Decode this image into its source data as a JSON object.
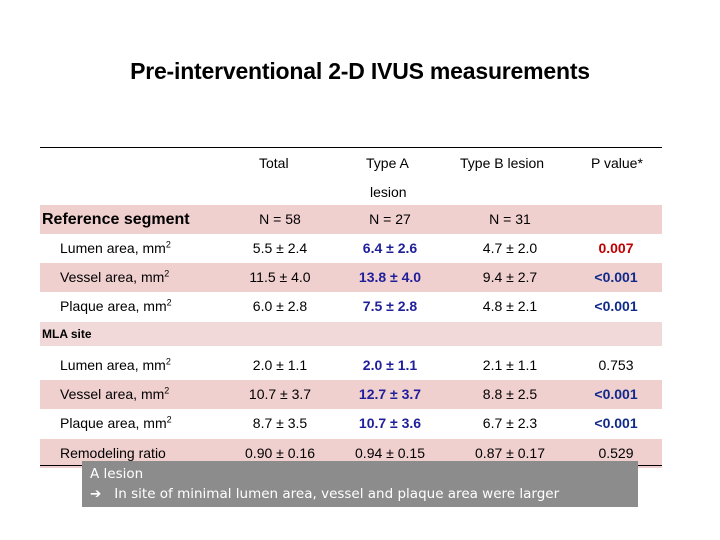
{
  "title": "Pre-interventional 2-D IVUS measurements",
  "headers": {
    "total": "Total",
    "type_a": "Type A",
    "type_a_line2": "lesion",
    "type_b": "Type B lesion",
    "p_value": "P value*"
  },
  "reference_segment": {
    "label": "Reference segment",
    "total": "N = 58",
    "type_a": "N = 27",
    "type_b": "N = 31"
  },
  "reference_rows": [
    {
      "label": "Lumen area, mm",
      "sup": "2",
      "total": "5.5 ± 2.4",
      "type_a": "6.4 ± 2.6",
      "type_b": "4.7 ± 2.0",
      "p": "0.007"
    },
    {
      "label": "Vessel area, mm",
      "sup": "2",
      "total": "11.5 ± 4.0",
      "type_a": "13.8 ± 4.0",
      "type_b": "9.4 ± 2.7",
      "p": "<0.001"
    },
    {
      "label": "Plaque area, mm",
      "sup": "2",
      "total": "6.0 ± 2.8",
      "type_a": "7.5 ± 2.8",
      "type_b": "4.8 ± 2.1",
      "p": "<0.001"
    }
  ],
  "mla_site": {
    "label": "MLA site"
  },
  "mla_rows": [
    {
      "label": "Lumen area, mm",
      "sup": "2",
      "total": "2.0 ± 1.1",
      "type_a": "2.0 ± 1.1",
      "type_b": "2.1 ± 1.1",
      "p": "0.753"
    },
    {
      "label": "Vessel area, mm",
      "sup": "2",
      "total": "10.7 ± 3.7",
      "type_a": "12.7 ± 3.7",
      "type_b": "8.8 ± 2.5",
      "p": "<0.001"
    },
    {
      "label": "Plaque area, mm",
      "sup": "2",
      "total": "8.7 ± 3.5",
      "type_a": "10.7 ± 3.6",
      "type_b": "6.7 ± 2.3",
      "p": "<0.001"
    },
    {
      "label": "Remodeling ratio",
      "sup": "",
      "total": "0.90 ± 0.16",
      "type_a": "0.94 ± 0.15",
      "type_b": "0.87 ± 0.17",
      "p": "0.529"
    }
  ],
  "callout": {
    "line1": "A lesion",
    "arrow": "➔",
    "line2": "In site of minimal lumen area, vessel and plaque area were larger"
  }
}
